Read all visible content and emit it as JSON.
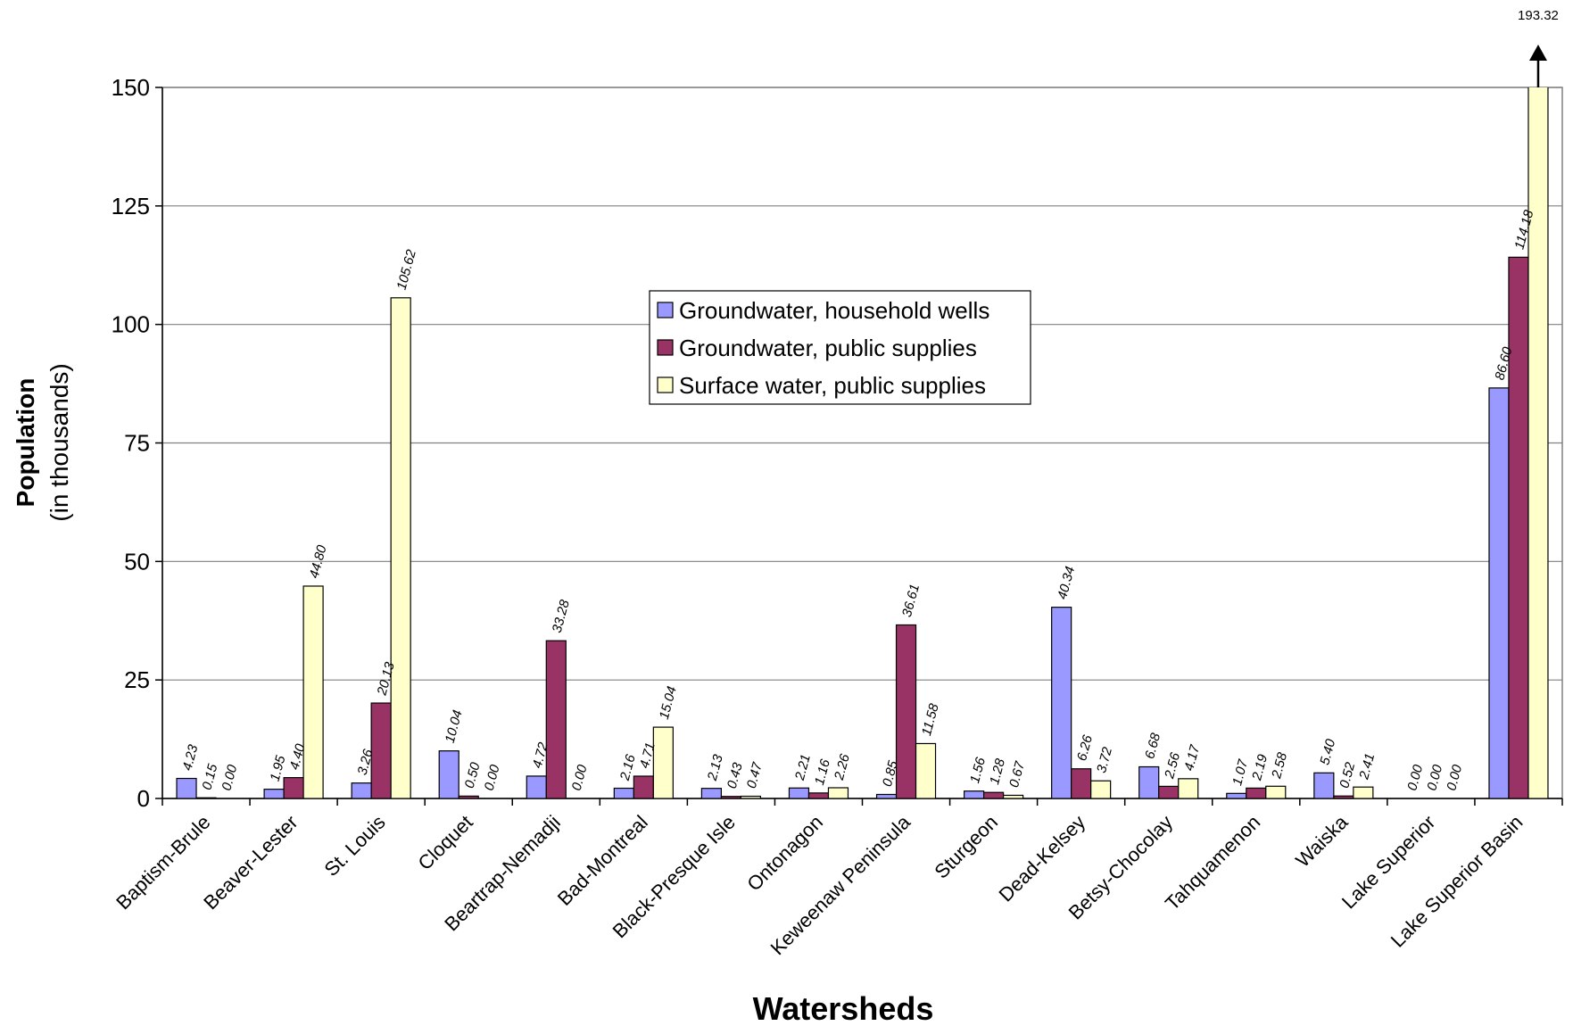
{
  "chart_data": {
    "type": "bar",
    "xlabel": "Watersheds",
    "ylabel": "Population",
    "ylabel_note": "(in thousands)",
    "categories": [
      "Baptism-Brule",
      "Beaver-Lester",
      "St. Louis",
      "Cloquet",
      "Beartrap-Nemadji",
      "Bad-Montreal",
      "Black-Presque Isle",
      "Ontonagon",
      "Keweenaw Peninsula",
      "Sturgeon",
      "Dead-Kelsey",
      "Betsy-Chocolay",
      "Tahquamenon",
      "Waiska",
      "Lake Superior",
      "Lake Superior Basin"
    ],
    "series": [
      {
        "name": "Groundwater, household wells",
        "color": "#9999ff",
        "values": [
          4.23,
          1.95,
          3.26,
          10.04,
          4.72,
          2.16,
          2.13,
          2.21,
          0.85,
          1.56,
          40.34,
          6.68,
          1.07,
          5.4,
          0,
          86.6
        ],
        "value_labels": [
          "4.23",
          "1.95",
          "3.26",
          "10.04",
          "4.72",
          "2.16",
          "2.13",
          "2.21",
          "0.85",
          "1.56",
          "40.34",
          "6.68",
          "1.07",
          "5.40",
          "0.00",
          "86.60"
        ]
      },
      {
        "name": "Groundwater, public supplies",
        "color": "#993366",
        "values": [
          0.15,
          4.4,
          20.13,
          0.5,
          33.28,
          4.71,
          0.43,
          1.16,
          36.61,
          1.28,
          6.26,
          2.56,
          2.19,
          0.52,
          0,
          114.18
        ],
        "value_labels": [
          "0.15",
          "4.40",
          "20.13",
          "0.50",
          "33.28",
          "4.71",
          "0.43",
          "1.16",
          "36.61",
          "1.28",
          "6.26",
          "2.56",
          "2.19",
          "0.52",
          "0.00",
          "114.18"
        ]
      },
      {
        "name": "Surface water, public supplies",
        "color": "#ffffcc",
        "values": [
          0,
          44.8,
          105.62,
          0,
          0,
          15.04,
          0.47,
          2.26,
          11.58,
          0.67,
          3.72,
          4.17,
          2.58,
          2.41,
          0,
          193.32
        ],
        "value_labels": [
          "0.00",
          "44.80",
          "105.62",
          "0.00",
          "0.00",
          "15.04",
          "0.47",
          "2.26",
          "11.58",
          "0.67",
          "3.72",
          "4.17",
          "2.58",
          "2.41",
          "0.00",
          "193.32"
        ]
      }
    ],
    "ylim": [
      0,
      150
    ],
    "yticks": [
      0,
      25,
      50,
      75,
      100,
      125,
      150
    ],
    "grid": true
  }
}
